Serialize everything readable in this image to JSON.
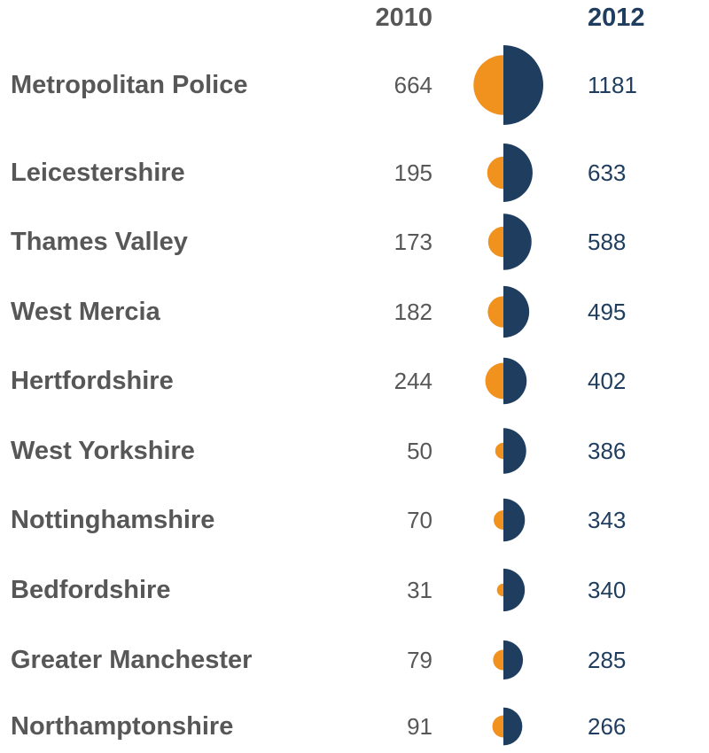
{
  "chart_data": {
    "type": "table",
    "columns": [
      "2010",
      "2012"
    ],
    "colors": {
      "2010": "#f2921e",
      "2012": "#1f3d5e"
    },
    "rows": [
      {
        "label": "Metropolitan Police",
        "v2010": 664,
        "v2012": 1181
      },
      {
        "label": "Leicestershire",
        "v2010": 195,
        "v2012": 633
      },
      {
        "label": "Thames Valley",
        "v2010": 173,
        "v2012": 588
      },
      {
        "label": "West Mercia",
        "v2010": 182,
        "v2012": 495
      },
      {
        "label": "Hertfordshire",
        "v2010": 244,
        "v2012": 402
      },
      {
        "label": "West Yorkshire",
        "v2010": 50,
        "v2012": 386
      },
      {
        "label": "Nottinghamshire",
        "v2010": 70,
        "v2012": 343
      },
      {
        "label": "Bedfordshire",
        "v2010": 31,
        "v2012": 340
      },
      {
        "label": "Greater Manchester",
        "v2010": 79,
        "v2012": 285
      },
      {
        "label": "Northamptonshire",
        "v2010": 91,
        "v2012": 266
      }
    ]
  }
}
